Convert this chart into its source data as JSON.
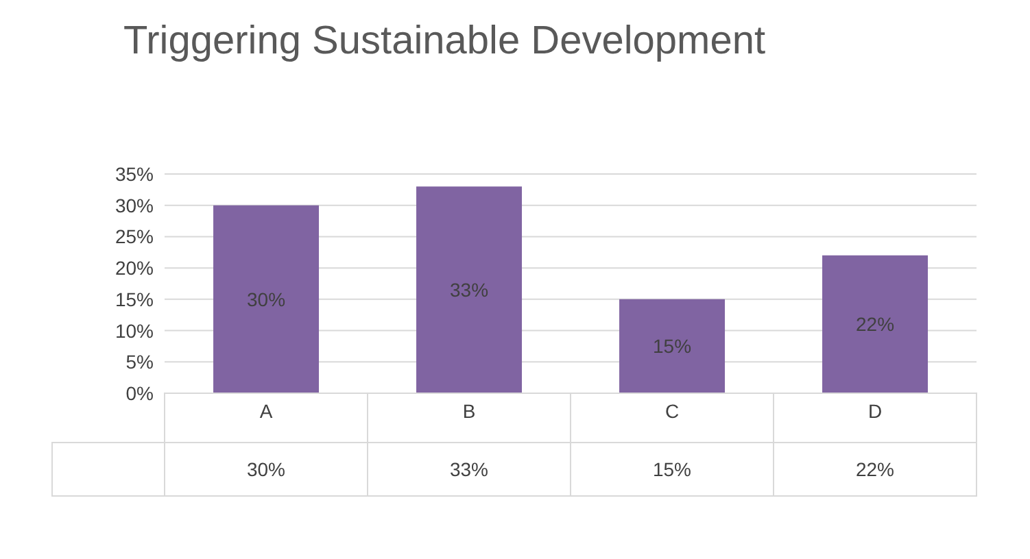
{
  "chart_data": {
    "type": "bar",
    "title": "Triggering Sustainable Development",
    "categories": [
      "A",
      "B",
      "C",
      "D"
    ],
    "values": [
      30,
      33,
      15,
      22
    ],
    "value_labels": [
      "30%",
      "33%",
      "15%",
      "22%"
    ],
    "color": "#8064a2",
    "ylim": [
      0,
      35
    ],
    "yticks": [
      {
        "value": 0,
        "label": "0%"
      },
      {
        "value": 5,
        "label": "5%"
      },
      {
        "value": 10,
        "label": "10%"
      },
      {
        "value": 15,
        "label": "15%"
      },
      {
        "value": 20,
        "label": "20%"
      },
      {
        "value": 25,
        "label": "25%"
      },
      {
        "value": 30,
        "label": "30%"
      },
      {
        "value": 35,
        "label": "35%"
      }
    ],
    "grid": "y"
  }
}
